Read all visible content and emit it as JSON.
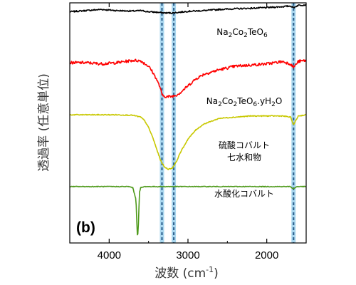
{
  "chart_data": {
    "type": "line",
    "title": "",
    "panel_label": "(b)",
    "xlabel": "波数 (cm⁻¹)",
    "xlabel_main": "波数 (cm",
    "xlabel_sup": "-1",
    "xlabel_close": ")",
    "ylabel": "透過率 (任意単位)",
    "xlim": [
      4500,
      1500
    ],
    "x_reversed": true,
    "x_ticks": [
      4000,
      3000,
      2000
    ],
    "x_tick_labels": [
      "4000",
      "3000",
      "2000"
    ],
    "y_ticks_shown": false,
    "y_units": "arbitrary (offset traces)",
    "grid": false,
    "reference_lines": {
      "wavenumbers": [
        3330,
        3180,
        1660
      ],
      "style": "dashed",
      "color": "#2a5d8a",
      "band_color": "#a9d6ee"
    },
    "series": [
      {
        "name": "Na2Co2TeO6",
        "label_parts": [
          {
            "t": "Na"
          },
          {
            "t": "2",
            "sub": true
          },
          {
            "t": "Co"
          },
          {
            "t": "2",
            "sub": true
          },
          {
            "t": "TeO"
          },
          {
            "t": "6",
            "sub": true
          }
        ],
        "color": "#000000",
        "x": [
          4500,
          4300,
          4100,
          3900,
          3700,
          3600,
          3500,
          3400,
          3300,
          3200,
          3100,
          3000,
          2800,
          2600,
          2400,
          2200,
          2000,
          1900,
          1800,
          1700,
          1660,
          1600,
          1500
        ],
        "y": [
          0.98,
          0.985,
          0.99,
          0.985,
          0.983,
          0.985,
          0.98,
          0.978,
          0.975,
          0.975,
          0.978,
          0.982,
          0.985,
          0.99,
          0.993,
          0.995,
          0.998,
          1.0,
          1.002,
          1.005,
          0.998,
          1.008,
          1.01
        ],
        "noise": 0.003
      },
      {
        "name": "Na2Co2TeO6.yH2O",
        "label_parts": [
          {
            "t": "Na"
          },
          {
            "t": "2",
            "sub": true
          },
          {
            "t": "Co"
          },
          {
            "t": "2",
            "sub": true
          },
          {
            "t": "TeO"
          },
          {
            "t": "6",
            "sub": true
          },
          {
            "t": ".yH"
          },
          {
            "t": "2",
            "sub": true
          },
          {
            "t": "O"
          }
        ],
        "color": "#ff0000",
        "x": [
          4500,
          4300,
          4100,
          3900,
          3800,
          3700,
          3600,
          3500,
          3450,
          3400,
          3350,
          3330,
          3300,
          3250,
          3200,
          3150,
          3100,
          3000,
          2900,
          2800,
          2600,
          2400,
          2200,
          2000,
          1900,
          1800,
          1700,
          1660,
          1600,
          1500
        ],
        "y": [
          0.76,
          0.76,
          0.755,
          0.76,
          0.765,
          0.77,
          0.768,
          0.745,
          0.72,
          0.69,
          0.65,
          0.62,
          0.615,
          0.613,
          0.615,
          0.62,
          0.63,
          0.66,
          0.69,
          0.71,
          0.73,
          0.745,
          0.75,
          0.755,
          0.76,
          0.765,
          0.755,
          0.74,
          0.765,
          0.77
        ],
        "noise": 0.006
      },
      {
        "name": "硫酸コバルト七水和物",
        "label_lines": [
          "硫酸コバルト",
          "七水和物"
        ],
        "color": "#c8c800",
        "x": [
          4500,
          4300,
          4100,
          3900,
          3700,
          3600,
          3550,
          3500,
          3450,
          3400,
          3350,
          3300,
          3250,
          3200,
          3150,
          3100,
          3000,
          2900,
          2800,
          2600,
          2400,
          2200,
          2000,
          1800,
          1700,
          1680,
          1660,
          1640,
          1600,
          1500
        ],
        "y": [
          0.535,
          0.535,
          0.535,
          0.535,
          0.533,
          0.525,
          0.51,
          0.48,
          0.44,
          0.39,
          0.34,
          0.31,
          0.3,
          0.305,
          0.33,
          0.37,
          0.43,
          0.47,
          0.495,
          0.52,
          0.525,
          0.53,
          0.53,
          0.53,
          0.525,
          0.51,
          0.49,
          0.505,
          0.53,
          0.535
        ],
        "noise": 0.002
      },
      {
        "name": "水酸化コバルト",
        "label_lines": [
          "水酸化コバルト"
        ],
        "color": "#4f9a1c",
        "x": [
          4500,
          4000,
          3750,
          3700,
          3660,
          3645,
          3640,
          3630,
          3615,
          3600,
          3550,
          3300,
          3000,
          2500,
          2000,
          1800,
          1700,
          1660,
          1620,
          1500
        ],
        "y": [
          0.225,
          0.225,
          0.225,
          0.22,
          0.17,
          0.03,
          0.0,
          0.05,
          0.2,
          0.22,
          0.225,
          0.225,
          0.225,
          0.225,
          0.225,
          0.225,
          0.225,
          0.215,
          0.225,
          0.225
        ],
        "noise": 0.0015
      }
    ]
  }
}
